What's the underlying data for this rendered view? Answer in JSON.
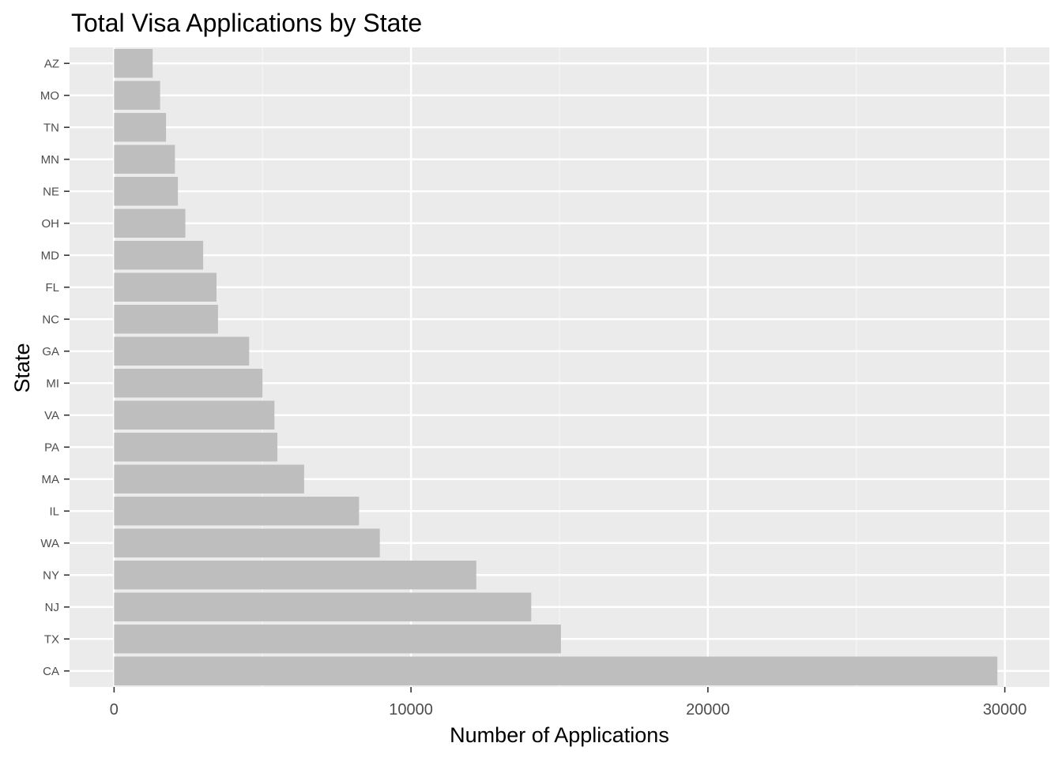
{
  "chart_data": {
    "type": "bar",
    "orientation": "horizontal",
    "title": "Total Visa Applications by State",
    "xlabel": "Number of Applications",
    "ylabel": "State",
    "categories": [
      "AZ",
      "MO",
      "TN",
      "MN",
      "NE",
      "OH",
      "MD",
      "FL",
      "NC",
      "GA",
      "MI",
      "VA",
      "PA",
      "MA",
      "IL",
      "WA",
      "NY",
      "NJ",
      "TX",
      "CA"
    ],
    "values": [
      1300,
      1550,
      1750,
      2050,
      2150,
      2400,
      3000,
      3450,
      3500,
      4550,
      5000,
      5400,
      5500,
      6400,
      8250,
      8950,
      12200,
      14050,
      15050,
      29750
    ],
    "xlim": [
      -1500,
      31500
    ],
    "xticks": [
      0,
      10000,
      20000,
      30000
    ],
    "xtick_labels": [
      "0",
      "10000",
      "20000",
      "30000"
    ],
    "grid": true,
    "legend": "none",
    "colors": {
      "bar": "#bebebe",
      "panel": "#ebebeb",
      "grid_major": "#ffffff",
      "grid_minor": "#f5f5f5",
      "tick_text": "#4d4d4d",
      "tick_mark": "#333333"
    }
  }
}
